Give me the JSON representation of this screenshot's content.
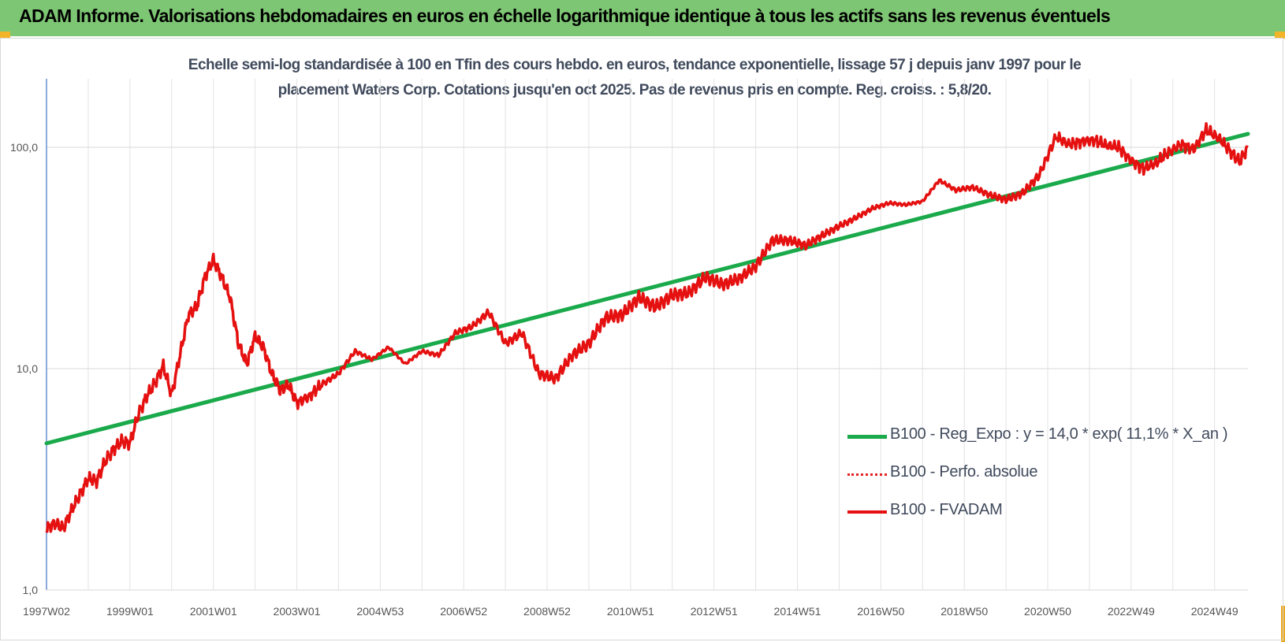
{
  "header": {
    "title": "ADAM Informe. Valorisations hebdomadaires en euros en échelle logarithmique identique à tous les actifs sans les revenus éventuels"
  },
  "chart_data": {
    "type": "line",
    "title_line1": "Echelle semi-log standardisée à 100 en Tfin des cours hebdo. en euros, tendance exponentielle, lissage 57 j depuis janv 1997 pour le",
    "title_line2": "placement Waters Corp. Cotations jusqu'en oct 2025. Pas de revenus pris en compte. Reg. croiss. : 5,8/20.",
    "y_scale": "log",
    "ylim": [
      1,
      180
    ],
    "y_ticks": [
      1,
      10,
      100
    ],
    "y_tick_labels": [
      "1,0",
      "10,0",
      "100,0"
    ],
    "x_range": [
      1997.0,
      2025.8
    ],
    "x_tick_labels": [
      "1997W02",
      "1999W01",
      "2001W01",
      "2003W01",
      "2004W53",
      "2006W52",
      "2008W52",
      "2010W51",
      "2012W51",
      "2014W51",
      "2016W50",
      "2018W50",
      "2020W50",
      "2022W49",
      "2024W49"
    ],
    "x_ticks": [
      1997.0,
      1999.0,
      2001.0,
      2003.0,
      2005.0,
      2007.0,
      2009.0,
      2011.0,
      2013.0,
      2015.0,
      2017.0,
      2019.0,
      2021.0,
      2023.0,
      2025.0
    ],
    "grid": "vertical and horizontal",
    "legend_position": "bottom-right",
    "colors": {
      "trend": "#1aaa4b",
      "perf": "#e52020",
      "fvadam": "#e51010"
    },
    "series": [
      {
        "name": "B100 - Reg_Expo : y = 14,0 * exp( 11,1% *  X_an )",
        "style": "solid-thick",
        "x": [
          1997.0,
          2025.8
        ],
        "y": [
          4.6,
          115
        ]
      },
      {
        "name": "B100 - Perfo. absolue",
        "style": "dotted",
        "x": [],
        "y": []
      },
      {
        "name": "B100 - FVADAM",
        "style": "solid",
        "x": [
          1997.0,
          1997.2,
          1997.4,
          1997.6,
          1997.8,
          1998.0,
          1998.2,
          1998.4,
          1998.6,
          1998.8,
          1999.0,
          1999.2,
          1999.4,
          1999.6,
          1999.8,
          2000.0,
          2000.2,
          2000.4,
          2000.6,
          2000.8,
          2001.0,
          2001.2,
          2001.4,
          2001.6,
          2001.8,
          2002.0,
          2002.2,
          2002.4,
          2002.6,
          2002.8,
          2003.0,
          2003.3,
          2003.6,
          2004.0,
          2004.4,
          2004.8,
          2005.2,
          2005.6,
          2006.0,
          2006.4,
          2006.8,
          2007.2,
          2007.6,
          2008.0,
          2008.4,
          2008.8,
          2009.2,
          2009.6,
          2010.0,
          2010.4,
          2010.8,
          2011.2,
          2011.6,
          2012.0,
          2012.4,
          2012.8,
          2013.2,
          2013.6,
          2014.0,
          2014.4,
          2014.8,
          2015.2,
          2015.6,
          2016.0,
          2016.4,
          2016.8,
          2017.2,
          2017.6,
          2018.0,
          2018.4,
          2018.8,
          2019.2,
          2019.6,
          2020.0,
          2020.4,
          2020.8,
          2021.2,
          2021.5,
          2021.8,
          2022.1,
          2022.4,
          2022.7,
          2023.0,
          2023.3,
          2023.6,
          2023.9,
          2024.2,
          2024.5,
          2024.8,
          2025.1,
          2025.4,
          2025.6,
          2025.8
        ],
        "y": [
          1.9,
          2.0,
          1.9,
          2.3,
          2.7,
          3.2,
          3.1,
          3.8,
          4.3,
          4.7,
          4.6,
          6.2,
          7.5,
          8.6,
          10.3,
          7.6,
          11.5,
          17.5,
          19.0,
          26.0,
          31.0,
          26.0,
          21.0,
          13.0,
          10.5,
          14.0,
          12.5,
          9.5,
          8.0,
          8.5,
          7.0,
          7.5,
          8.5,
          9.5,
          12.0,
          11.0,
          12.5,
          10.5,
          12.0,
          11.5,
          14.5,
          15.5,
          18.0,
          13.0,
          14.5,
          9.5,
          9.0,
          11.5,
          13.0,
          17.0,
          17.5,
          21.0,
          19.0,
          21.5,
          22.0,
          26.0,
          24.0,
          25.5,
          29.0,
          38.0,
          38.0,
          36.0,
          40.0,
          44.0,
          48.0,
          53.0,
          56.0,
          55.0,
          57.0,
          71.0,
          64.0,
          66.0,
          61.0,
          58.0,
          62.0,
          75.0,
          112.0,
          103.0,
          106.0,
          108.0,
          102.0,
          100.0,
          87.0,
          80.0,
          85.0,
          95.0,
          103.0,
          98.0,
          120.0,
          110.0,
          95.0,
          86.0,
          100.0
        ]
      }
    ]
  }
}
